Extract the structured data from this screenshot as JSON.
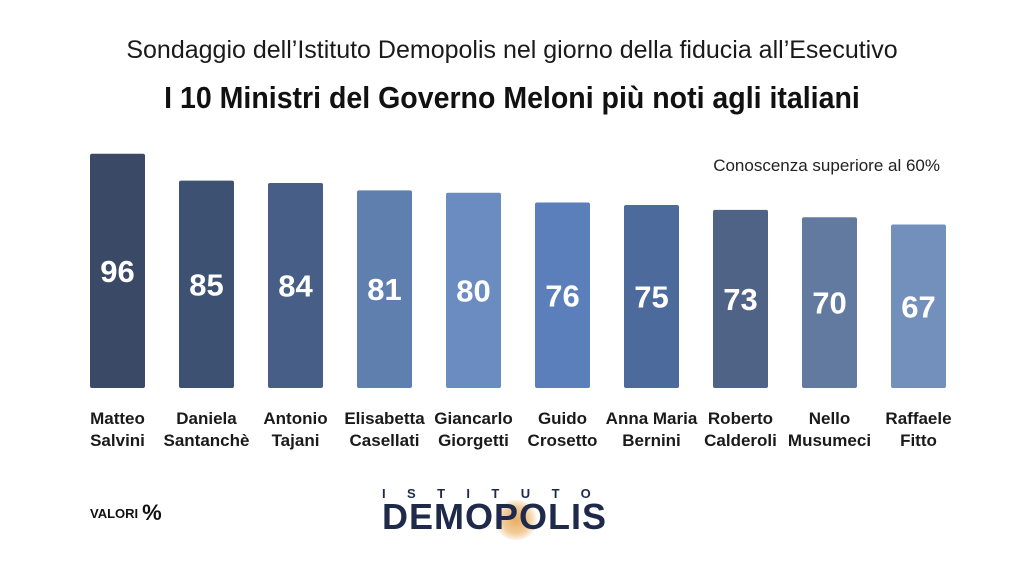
{
  "header": {
    "subtitle": "Sondaggio dell’Istituto Demopolis nel giorno della fiducia all’Esecutivo",
    "title": "I 10 Ministri del Governo Meloni più noti agli italiani"
  },
  "note": "Conoscenza superiore al 60%",
  "units_label": "VALORI",
  "units_symbol": "%",
  "logo": {
    "top_text": "ISTITUTO",
    "main_text": "DEMOPOLIS"
  },
  "colors": {
    "bars": [
      "#3a4a66",
      "#3d5173",
      "#475e86",
      "#5f7fae",
      "#6a8cc0",
      "#5a7fba",
      "#4d6a9c",
      "#4f6386",
      "#637aa0",
      "#7390bd"
    ]
  },
  "chart_data": {
    "type": "bar",
    "categories": [
      [
        "Matteo",
        "Salvini"
      ],
      [
        "Daniela",
        "Santanchè"
      ],
      [
        "Antonio",
        "Tajani"
      ],
      [
        "Elisabetta",
        "Casellati"
      ],
      [
        "Giancarlo",
        "Giorgetti"
      ],
      [
        "Guido",
        "Crosetto"
      ],
      [
        "Anna Maria",
        "Bernini"
      ],
      [
        "Roberto",
        "Calderoli"
      ],
      [
        "Nello",
        "Musumeci"
      ],
      [
        "Raffaele",
        "Fitto"
      ]
    ],
    "values": [
      96,
      85,
      84,
      81,
      80,
      76,
      75,
      73,
      70,
      67
    ],
    "ylim": [
      0,
      100
    ],
    "grid": false,
    "legend": "none"
  }
}
